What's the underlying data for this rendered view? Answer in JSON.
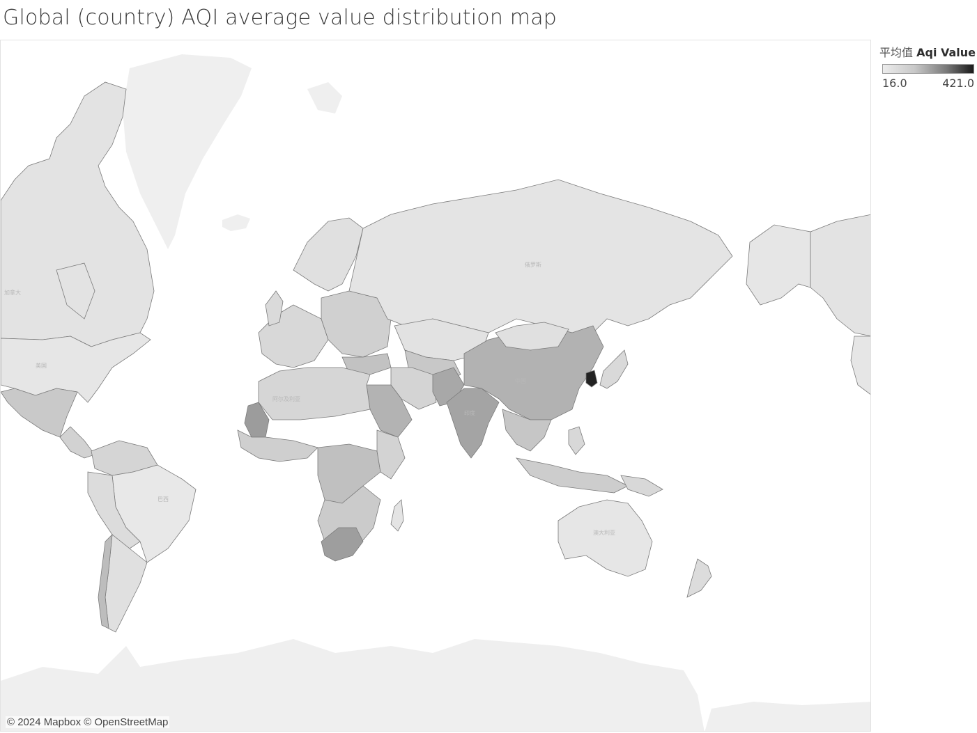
{
  "title": "Global (country) AQI average value distribution map",
  "legend": {
    "measure_prefix": "平均值",
    "measure_name": "Aqi Value",
    "min_label": "16.0",
    "max_label": "421.0",
    "color_low": "#ececec",
    "color_high": "#1a1a1a"
  },
  "attribution": "© 2024 Mapbox © OpenStreetMap",
  "map_labels": {
    "russia": "俄罗斯",
    "china": "中国",
    "brazil": "巴西",
    "australia": "澳大利亚",
    "usa": "美国",
    "canada": "加拿大",
    "india": "印度",
    "algeria": "阿尔及利亚"
  }
}
